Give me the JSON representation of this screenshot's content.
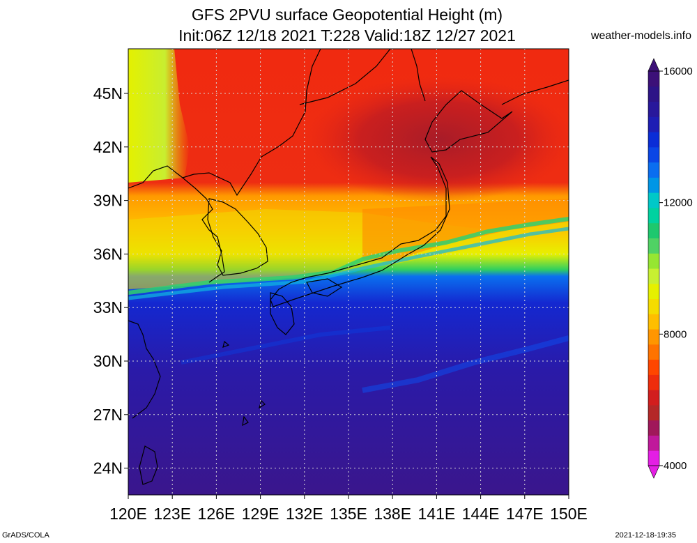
{
  "title": {
    "line1": "GFS 2PVU surface Geopotential Height (m)",
    "line2": "Init:06Z 12/18 2021 T:228 Valid:18Z 12/27 2021"
  },
  "credit": "weather-models.info",
  "footer": {
    "left": "GrADS/COLA",
    "right": "2021-12-18-19:35"
  },
  "map": {
    "lat_ticks": [
      {
        "value": 45,
        "label": "45N"
      },
      {
        "value": 42,
        "label": "42N"
      },
      {
        "value": 39,
        "label": "39N"
      },
      {
        "value": 36,
        "label": "36N"
      },
      {
        "value": 33,
        "label": "33N"
      },
      {
        "value": 30,
        "label": "30N"
      },
      {
        "value": 27,
        "label": "27N"
      },
      {
        "value": 24,
        "label": "24N"
      }
    ],
    "lon_ticks": [
      {
        "value": 120,
        "label": "120E"
      },
      {
        "value": 123,
        "label": "123E"
      },
      {
        "value": 126,
        "label": "126E"
      },
      {
        "value": 129,
        "label": "129E"
      },
      {
        "value": 132,
        "label": "132E"
      },
      {
        "value": 135,
        "label": "135E"
      },
      {
        "value": 138,
        "label": "138E"
      },
      {
        "value": 141,
        "label": "141E"
      },
      {
        "value": 144,
        "label": "144E"
      },
      {
        "value": 147,
        "label": "147E"
      },
      {
        "value": 150,
        "label": "150E"
      }
    ],
    "lat_range": [
      22.5,
      47.5
    ],
    "lon_range": [
      120,
      150
    ]
  },
  "colorbar": {
    "min": 4000,
    "max": 16000,
    "labels": [
      {
        "value": 16000,
        "label": "16000"
      },
      {
        "value": 12000,
        "label": "12000"
      },
      {
        "value": 8000,
        "label": "8000"
      },
      {
        "value": 4000,
        "label": "4000"
      }
    ],
    "colors": [
      "#e41ee4",
      "#c0199b",
      "#a0185a",
      "#b42828",
      "#d21e1e",
      "#ee2d0d",
      "#ff4600",
      "#ff7300",
      "#ff9600",
      "#ffbe00",
      "#f5dc00",
      "#e6f000",
      "#c8f032",
      "#96e632",
      "#50d264",
      "#1ec86e",
      "#00d2a0",
      "#00c8c8",
      "#0096e6",
      "#0a6ef0",
      "#0a46e6",
      "#0a2dd7",
      "#1e1eb4",
      "#28189b",
      "#2d1487",
      "#3c1078"
    ]
  }
}
